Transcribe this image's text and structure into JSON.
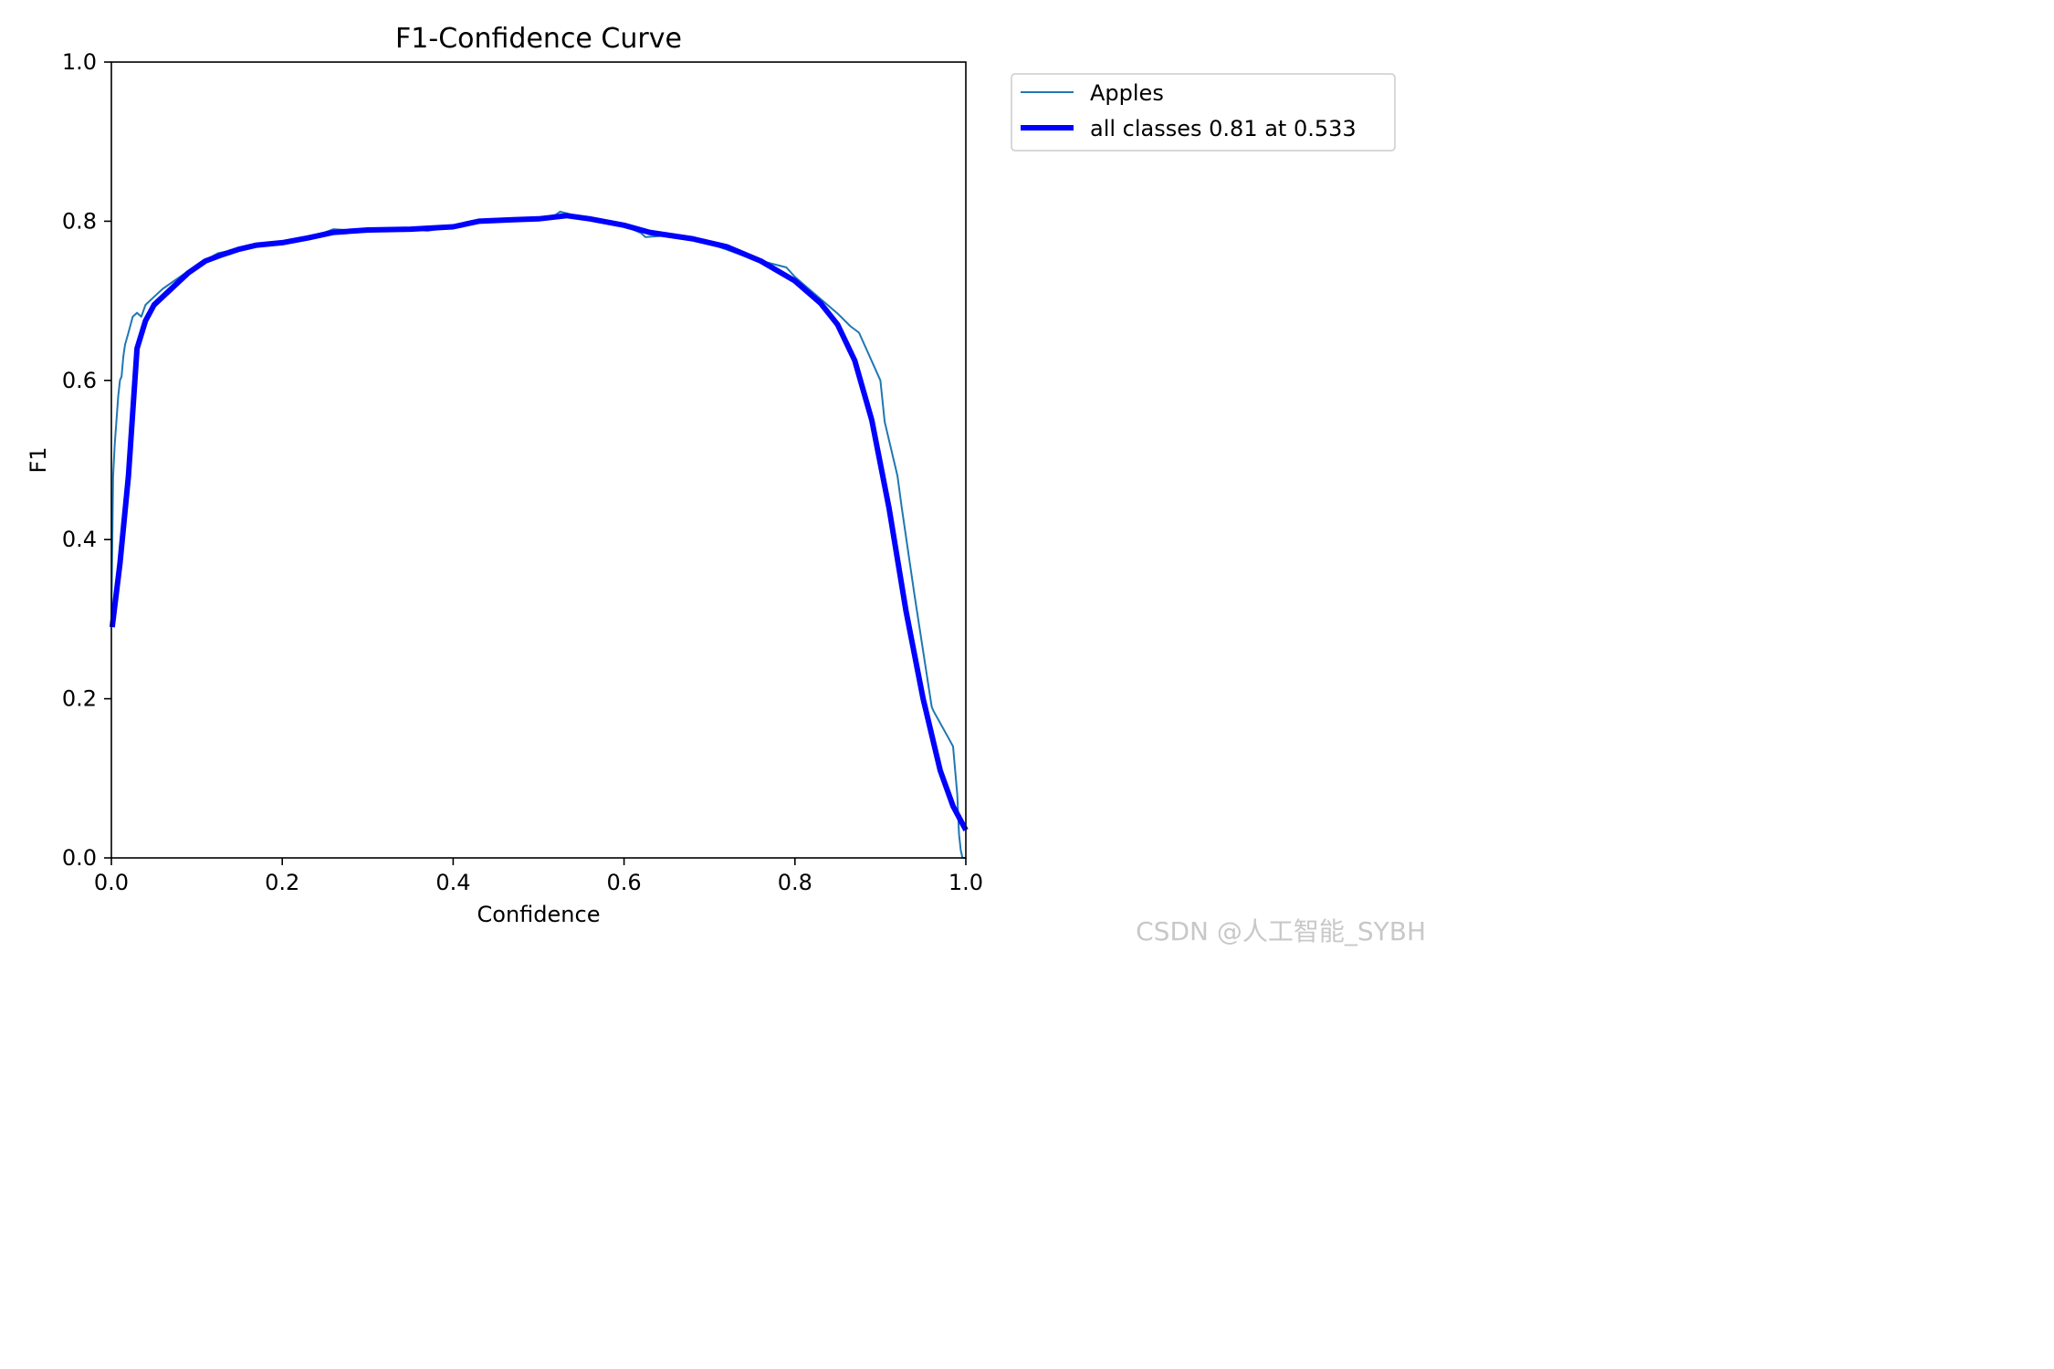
{
  "chart_data": {
    "type": "line",
    "title": "F1-Confidence Curve",
    "xlabel": "Confidence",
    "ylabel": "F1",
    "xlim": [
      0.0,
      1.0
    ],
    "ylim": [
      0.0,
      1.0
    ],
    "xticks": [
      "0.0",
      "0.2",
      "0.4",
      "0.6",
      "0.8",
      "1.0"
    ],
    "yticks": [
      "0.0",
      "0.2",
      "0.4",
      "0.6",
      "0.8",
      "1.0"
    ],
    "grid": false,
    "legend_position": "outside-top-right",
    "series": [
      {
        "name": "Apples",
        "color": "#1f77b4",
        "style": "thin",
        "x": [
          0.0,
          0.002,
          0.004,
          0.006,
          0.008,
          0.01,
          0.012,
          0.014,
          0.016,
          0.02,
          0.025,
          0.03,
          0.035,
          0.04,
          0.05,
          0.06,
          0.08,
          0.1,
          0.12,
          0.125,
          0.15,
          0.18,
          0.2,
          0.22,
          0.25,
          0.26,
          0.3,
          0.35,
          0.37,
          0.4,
          0.43,
          0.45,
          0.5,
          0.52,
          0.525,
          0.55,
          0.58,
          0.6,
          0.62,
          0.625,
          0.65,
          0.7,
          0.75,
          0.79,
          0.8,
          0.85,
          0.865,
          0.875,
          0.9,
          0.905,
          0.92,
          0.925,
          0.94,
          0.96,
          0.962,
          0.98,
          0.985,
          0.99,
          0.992,
          0.994,
          0.996,
          1.0
        ],
        "y": [
          0.3,
          0.48,
          0.52,
          0.55,
          0.58,
          0.6,
          0.605,
          0.63,
          0.645,
          0.66,
          0.68,
          0.685,
          0.68,
          0.695,
          0.705,
          0.715,
          0.73,
          0.745,
          0.757,
          0.76,
          0.765,
          0.771,
          0.774,
          0.778,
          0.786,
          0.79,
          0.787,
          0.79,
          0.788,
          0.793,
          0.802,
          0.803,
          0.803,
          0.808,
          0.812,
          0.805,
          0.797,
          0.795,
          0.785,
          0.78,
          0.782,
          0.772,
          0.753,
          0.742,
          0.73,
          0.684,
          0.668,
          0.66,
          0.6,
          0.548,
          0.48,
          0.44,
          0.33,
          0.19,
          0.185,
          0.15,
          0.14,
          0.08,
          0.03,
          0.01,
          0.0,
          0.0
        ]
      },
      {
        "name": "all classes 0.81 at 0.533",
        "color": "#0000ff",
        "style": "thick",
        "x": [
          0.001,
          0.01,
          0.02,
          0.025,
          0.03,
          0.04,
          0.05,
          0.07,
          0.09,
          0.11,
          0.13,
          0.15,
          0.17,
          0.2,
          0.23,
          0.26,
          0.3,
          0.35,
          0.4,
          0.43,
          0.47,
          0.5,
          0.533,
          0.56,
          0.6,
          0.63,
          0.68,
          0.72,
          0.76,
          0.8,
          0.83,
          0.85,
          0.87,
          0.89,
          0.91,
          0.93,
          0.95,
          0.97,
          0.985,
          1.0
        ],
        "y": [
          0.29,
          0.37,
          0.48,
          0.56,
          0.64,
          0.675,
          0.695,
          0.715,
          0.735,
          0.75,
          0.758,
          0.765,
          0.77,
          0.773,
          0.779,
          0.786,
          0.789,
          0.79,
          0.793,
          0.8,
          0.802,
          0.803,
          0.807,
          0.803,
          0.795,
          0.786,
          0.778,
          0.768,
          0.75,
          0.725,
          0.697,
          0.67,
          0.625,
          0.55,
          0.44,
          0.31,
          0.2,
          0.11,
          0.065,
          0.035
        ]
      }
    ]
  },
  "watermark": "CSDN @人工智能_SYBH"
}
